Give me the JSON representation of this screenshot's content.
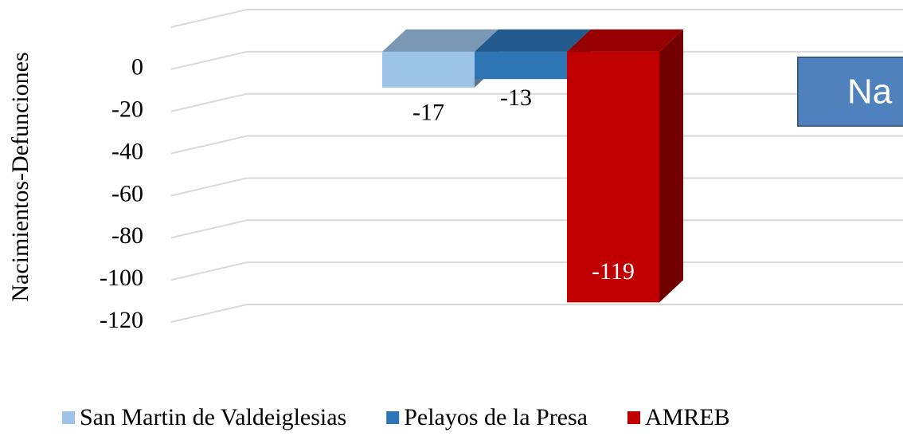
{
  "chart_data": {
    "type": "bar3d",
    "y_label": "Nacimientos-Defunciones",
    "annotation": "Na",
    "series": [
      {
        "name": "San Martin de Valdeiglesias",
        "color": "#9dc3e6",
        "values": [
          -17
        ]
      },
      {
        "name": "Pelayos de la Presa",
        "color": "#2e75b6",
        "values": [
          -13
        ]
      },
      {
        "name": "AMREB",
        "color": "#c00000",
        "values": [
          -119
        ]
      }
    ],
    "ylim": [
      -120,
      20
    ],
    "yticks": [
      0,
      -20,
      -40,
      -60,
      -80,
      -100,
      -120
    ],
    "grid": true,
    "legend": "bottom"
  }
}
